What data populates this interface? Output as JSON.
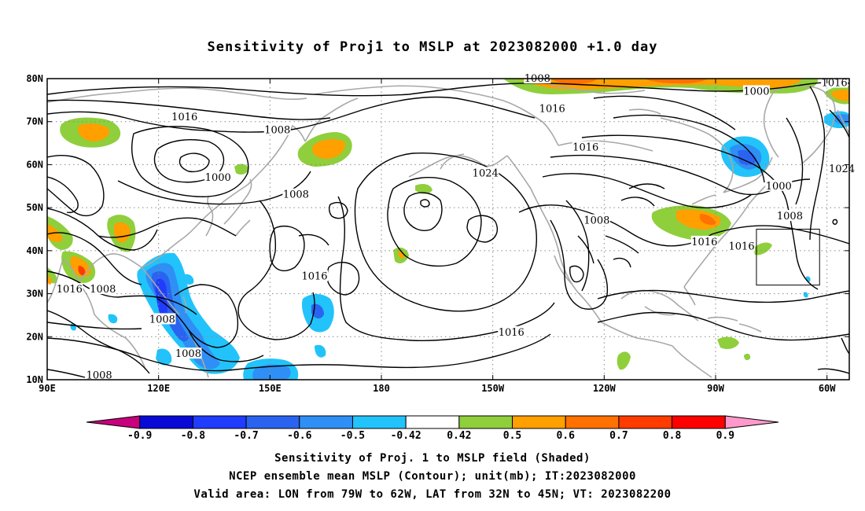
{
  "title": "Sensitivity of Proj1 to MSLP at 2023082000 +1.0 day",
  "map": {
    "lon_range_deg_east": [
      90,
      306
    ],
    "lat_range": [
      10,
      80
    ],
    "lon_ticks": [
      {
        "lon": 90,
        "label": "90E"
      },
      {
        "lon": 120,
        "label": "120E"
      },
      {
        "lon": 150,
        "label": "150E"
      },
      {
        "lon": 180,
        "label": "180"
      },
      {
        "lon": 210,
        "label": "150W"
      },
      {
        "lon": 240,
        "label": "120W"
      },
      {
        "lon": 270,
        "label": "90W"
      },
      {
        "lon": 300,
        "label": "60W"
      }
    ],
    "lat_ticks": [
      {
        "lat": 10,
        "label": "10N"
      },
      {
        "lat": 20,
        "label": "20N"
      },
      {
        "lat": 30,
        "label": "30N"
      },
      {
        "lat": 40,
        "label": "40N"
      },
      {
        "lat": 50,
        "label": "50N"
      },
      {
        "lat": 60,
        "label": "60N"
      },
      {
        "lat": 70,
        "label": "70N"
      },
      {
        "lat": 80,
        "label": "80N"
      }
    ],
    "grid": "dotted",
    "coastline_color": "#a8a8a8",
    "valid_area": {
      "lon_w": [
        79,
        62
      ],
      "lat_n": [
        32,
        45
      ]
    },
    "contour_labels": [
      {
        "lon": 127,
        "lat": 71,
        "text": "1016"
      },
      {
        "lon": 152,
        "lat": 68,
        "text": "1008"
      },
      {
        "lon": 222,
        "lat": 80,
        "text": "1008"
      },
      {
        "lon": 281,
        "lat": 77,
        "text": "1000"
      },
      {
        "lon": 302,
        "lat": 79,
        "text": "1016"
      },
      {
        "lon": 226,
        "lat": 73,
        "text": "1016"
      },
      {
        "lon": 235,
        "lat": 64,
        "text": "1016"
      },
      {
        "lon": 208,
        "lat": 58,
        "text": "1024"
      },
      {
        "lon": 136,
        "lat": 57,
        "text": "1000"
      },
      {
        "lon": 157,
        "lat": 53,
        "text": "1008"
      },
      {
        "lon": 287,
        "lat": 55,
        "text": "1000"
      },
      {
        "lon": 304,
        "lat": 59,
        "text": "1024"
      },
      {
        "lon": 290,
        "lat": 48,
        "text": "1008"
      },
      {
        "lon": 238,
        "lat": 47,
        "text": "1008"
      },
      {
        "lon": 277,
        "lat": 41,
        "text": "1016"
      },
      {
        "lon": 267,
        "lat": 42,
        "text": "1016"
      },
      {
        "lon": 162,
        "lat": 34,
        "text": "1016"
      },
      {
        "lon": 96,
        "lat": 31,
        "text": "1016"
      },
      {
        "lon": 105,
        "lat": 31,
        "text": "1008"
      },
      {
        "lon": 121,
        "lat": 24,
        "text": "1008"
      },
      {
        "lon": 128,
        "lat": 16,
        "text": "1008"
      },
      {
        "lon": 215,
        "lat": 21,
        "text": "1016"
      },
      {
        "lon": 104,
        "lat": 11,
        "text": "1008"
      }
    ]
  },
  "colorbar": {
    "labels": [
      "-0.9",
      "-0.8",
      "-0.7",
      "-0.6",
      "-0.5",
      "-0.42",
      "0.42",
      "0.5",
      "0.6",
      "0.7",
      "0.8",
      "0.9"
    ],
    "colors": [
      "#c8007e",
      "#0a0ad6",
      "#1f3cff",
      "#2a63f0",
      "#2f8ff5",
      "#22c3fa",
      "#ffffff",
      "#8fcf3c",
      "#ff9f00",
      "#ff7100",
      "#ff3b00",
      "#ff0000",
      "#ff99cc"
    ]
  },
  "caption": {
    "line1": "Sensitivity of Proj. 1 to MSLP field (Shaded)",
    "line2": "NCEP ensemble mean MSLP (Contour); unit(mb); IT:2023082000",
    "line3": "Valid area: LON from 79W to 62W, LAT from 32N to 45N; VT: 2023082200"
  }
}
